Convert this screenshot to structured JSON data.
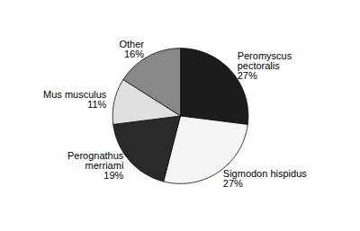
{
  "chart_data": {
    "type": "pie",
    "categories": [
      "Peromyscus\npectoralis",
      "Sigmodon hispidus",
      "Perognathus\nmerriami",
      "Mus musculus",
      "Other"
    ],
    "values": [
      27,
      27,
      19,
      11,
      16
    ],
    "value_labels": [
      "27%",
      "27%",
      "19%",
      "11%",
      "16%"
    ],
    "colors": [
      "#1c1c1c",
      "#f5f5f5",
      "#2a2a2a",
      "#e0e0e0",
      "#888888"
    ],
    "data_labels": true
  }
}
